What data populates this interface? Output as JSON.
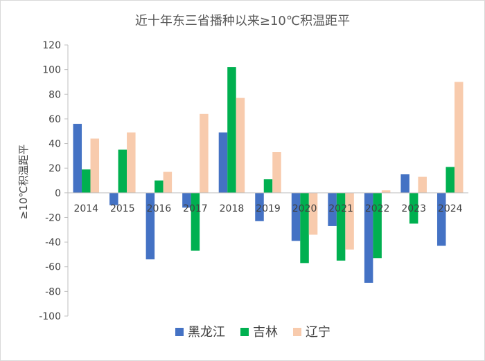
{
  "chart_data": {
    "type": "bar",
    "title": "近十年东三省播种以来≥10℃积温距平",
    "ylabel": "≥10℃积温距平",
    "xlabel": "",
    "ylim": [
      -100,
      120
    ],
    "yticks": [
      120,
      100,
      80,
      60,
      40,
      20,
      0,
      -20,
      -40,
      -60,
      -80,
      -100
    ],
    "grid": false,
    "legend_position": "bottom",
    "categories": [
      "2014",
      "2015",
      "2016",
      "2017",
      "2018",
      "2019",
      "2020",
      "2021",
      "2022",
      "2023",
      "2024"
    ],
    "series": [
      {
        "name": "黑龙江",
        "color": "#4472C4",
        "values": [
          56,
          -10,
          -54,
          -12,
          49,
          -23,
          -39,
          -27,
          -73,
          15,
          -43
        ]
      },
      {
        "name": "吉林",
        "color": "#00B050",
        "values": [
          19,
          35,
          10,
          -47,
          102,
          11,
          -57,
          -55,
          -53,
          -25,
          21
        ]
      },
      {
        "name": "辽宁",
        "color": "#F8CBAD",
        "values": [
          44,
          49,
          17,
          64,
          77,
          33,
          -34,
          -46,
          2,
          13,
          90
        ]
      }
    ]
  }
}
